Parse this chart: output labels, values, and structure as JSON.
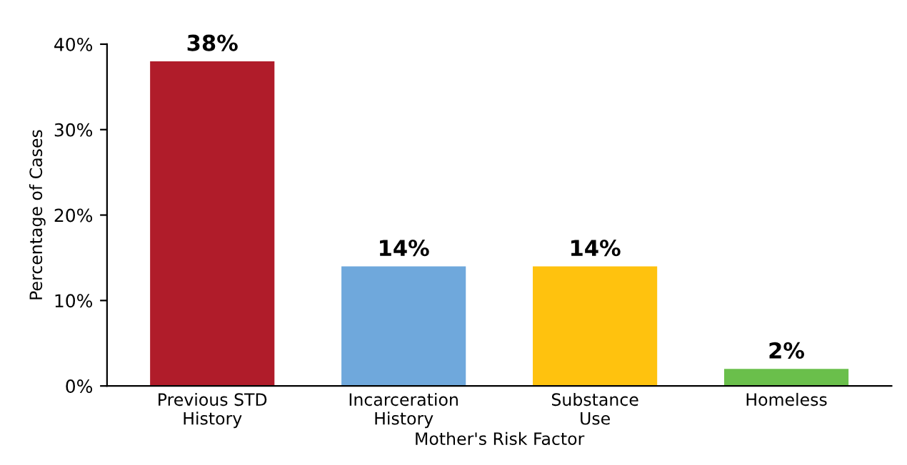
{
  "chart_data": {
    "type": "bar",
    "xlabel": "Mother's Risk Factor",
    "ylabel": "Percentage of Cases",
    "categories": [
      "Previous STD\nHistory",
      "Incarceration\nHistory",
      "Substance\nUse",
      "Homeless"
    ],
    "values": [
      38,
      14,
      14,
      2
    ],
    "colors": [
      "#b01c2a",
      "#6fa8dc",
      "#ffc20e",
      "#6abf4b"
    ],
    "value_labels": [
      "38%",
      "14%",
      "14%",
      "2%"
    ],
    "ylim": [
      0,
      40
    ],
    "yticks": [
      {
        "value": 0,
        "label": "0%"
      },
      {
        "value": 10,
        "label": "10%"
      },
      {
        "value": 20,
        "label": "20%"
      },
      {
        "value": 30,
        "label": "30%"
      },
      {
        "value": 40,
        "label": "40%"
      }
    ],
    "grid": false,
    "legend": false
  }
}
